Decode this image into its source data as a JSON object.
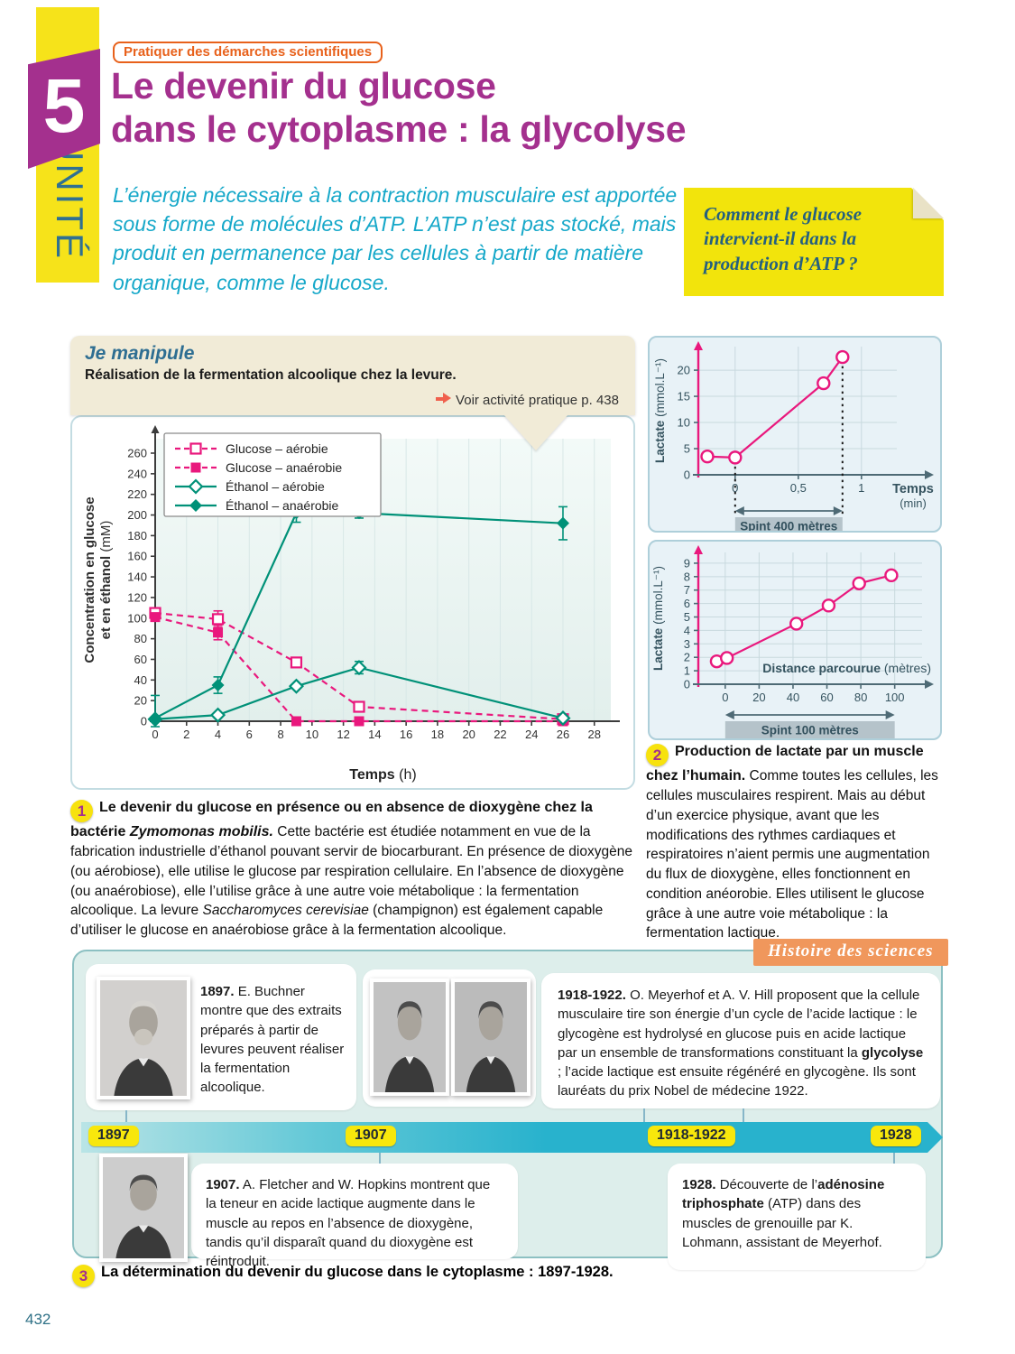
{
  "page_number": "432",
  "header": {
    "unit_word": "UNITÉ",
    "unit_number": "5",
    "skill_badge": "Pratiquer des démarches scientifiques",
    "title_line1": "Le devenir du glucose",
    "title_line2": "dans le cytoplasme : la glycolyse",
    "intro": "L’énergie nécessaire à la contraction musculaire est apportée sous forme de molécules d’ATP. L’ATP n’est pas stocké, mais produit en permanence par les cellules à partir de matière organique, comme le glucose.",
    "question_note": "Comment le glucose intervient-il dans la production d’ATP ?"
  },
  "je_manipule": {
    "title": "Je manipule",
    "subtitle": "Réalisation de la fermentation alcoolique chez la levure.",
    "link_text": "Voir activité pratique p. 438",
    "link_arrow_icon": "arrow-right-icon"
  },
  "figure1": {
    "number": "1",
    "bold_lead": "Le devenir du glucose en présence ou en absence de dioxygène chez la bactérie ",
    "bold_italic_species": "Zymomonas mobilis.",
    "body1": " Cette bactérie est étudiée notamment en vue de la fabrication industrielle d’éthanol pouvant servir de biocarburant. En présence de dioxygène (ou aérobiose), elle utilise le glucose par respiration cellulaire. En l’absence de dioxygène (ou anaérobiose), elle l’utilise grâce à une autre voie métabolique : la fermentation alcoolique. La levure ",
    "italic_species": "Saccharomyces cerevisiae",
    "body2": " (champignon) est également capable d’utiliser le glucose en anaérobiose grâce à la fermentation alcoolique."
  },
  "figure2": {
    "number": "2",
    "bold_lead": "Production de lactate par un muscle chez l’humain.",
    "body": " Comme toutes les cellules, les cellules musculaires respirent. Mais au début d’un exercice physique, avant que les modifications des rythmes cardiaques et respiratoires n’aient permis une augmentation du flux de dioxygène, elles fonctionnent en condition anéorobie. Elles utilisent le glucose grâce à une autre voie métabolique : la fermentation lactique."
  },
  "figure3": {
    "number": "3",
    "caption": "La détermination du devenir du glucose dans le cytoplasme : 1897-1928."
  },
  "history": {
    "badge": "Histoire des sciences",
    "years": [
      "1897",
      "1907",
      "1918-1922",
      "1928"
    ],
    "event_1897": {
      "year": "1897.",
      "text": " E. Buchner montre que des extraits préparés à partir de levures peuvent réaliser la fermentation alcoolique."
    },
    "event_1918": {
      "year": "1918-1922.",
      "text1": " O. Meyerhof et A. V. Hill proposent que la cellule musculaire tire son énergie d’un cycle de l’acide lactique : le glycogène est hydrolysé en glucose puis en acide lactique par un ensemble de transformations constituant la ",
      "bold": "glycolyse",
      "text2": " ; l’acide lactique est ensuite régénéré en glycogène. Ils sont lauréats du prix Nobel de médecine 1922."
    },
    "event_1907": {
      "year": "1907.",
      "text": " A. Fletcher and W. Hopkins montrent que la teneur en acide lactique augmente dans le muscle au repos en l’absence de dioxygène, tandis qu’il disparaît quand du dioxygène est réintroduit."
    },
    "event_1928": {
      "year": "1928.",
      "text1": " Découverte de l’",
      "bold": "adénosine triphosphate",
      "text2": " (ATP) dans des muscles de grenouille par K. Lohmann, assistant de Meyerhof."
    }
  },
  "chart_data": [
    {
      "id": "fermentation",
      "type": "line",
      "xlabel_bold": "Temps",
      "xlabel_unit": "(h)",
      "ylabel_line1": "Concentration en glucose",
      "ylabel_line2": "et en éthanol",
      "ylabel_unit": "(mM)",
      "xlim": [
        0,
        29.05
      ],
      "ylim": [
        0,
        274
      ],
      "xticks": [
        0,
        2,
        4,
        6,
        8,
        10,
        12,
        14,
        16,
        18,
        20,
        22,
        24,
        26,
        28
      ],
      "yticks": [
        0,
        20,
        40,
        60,
        80,
        100,
        120,
        140,
        160,
        180,
        200,
        220,
        240,
        260
      ],
      "grid": "vertical",
      "legend_position": "top-left",
      "series": [
        {
          "name": "Glucose – aérobie",
          "color": "#e9187d",
          "dashed": true,
          "marker": "square-open",
          "points": [
            [
              0,
              105
            ],
            [
              4,
              99,
              8
            ],
            [
              9,
              57
            ],
            [
              13,
              14
            ],
            [
              26,
              2
            ]
          ]
        },
        {
          "name": "Glucose – anaérobie",
          "color": "#e9187d",
          "dashed": true,
          "marker": "square-filled",
          "points": [
            [
              0,
              101
            ],
            [
              4,
              86,
              7
            ],
            [
              9,
              0
            ],
            [
              13,
              0
            ],
            [
              26,
              0
            ]
          ]
        },
        {
          "name": "Éthanol – aérobie",
          "color": "#009178",
          "dashed": false,
          "marker": "diamond-open",
          "points": [
            [
              0,
              2
            ],
            [
              4,
              6
            ],
            [
              9,
              34
            ],
            [
              13,
              52,
              6
            ],
            [
              26,
              3
            ]
          ]
        },
        {
          "name": "Éthanol – anaérobie",
          "color": "#009178",
          "dashed": false,
          "marker": "diamond-filled",
          "points": [
            [
              0,
              3,
              22
            ],
            [
              4,
              35,
              8
            ],
            [
              9,
              202,
              9
            ],
            [
              13,
              202,
              5
            ],
            [
              26,
              192,
              16
            ]
          ]
        }
      ]
    },
    {
      "id": "lactate_temps",
      "type": "line",
      "ylabel_bold": "Lactate",
      "ylabel_unit": "(mmol.L⁻¹)",
      "xlabel_bold": "Temps",
      "xlabel_unit": "(min)",
      "xlim": [
        -0.32,
        1.58
      ],
      "ylim": [
        0,
        24.5
      ],
      "xticks": [
        0,
        0.5,
        1
      ],
      "xtick_labels": [
        "0",
        "0,5",
        "1"
      ],
      "yticks": [
        0,
        5,
        10,
        15,
        20
      ],
      "grid": "both",
      "series": [
        {
          "name": "Lactate",
          "color": "#e9187d",
          "dashed": false,
          "marker": "circle-open",
          "points": [
            [
              -0.22,
              3.5
            ],
            [
              0,
              3.3
            ],
            [
              0.7,
              17.5
            ],
            [
              0.85,
              22.5
            ]
          ]
        }
      ],
      "dotted_x": [
        0,
        0.85
      ],
      "span": {
        "from": 0,
        "to": 0.85,
        "label": "Spint 400 mètres"
      }
    },
    {
      "id": "lactate_distance",
      "type": "line",
      "ylabel_bold": "Lactate",
      "ylabel_unit": "(mmol.L⁻¹)",
      "inner_label_bold": "Distance parcourue",
      "inner_label_unit": "(mètres)",
      "xlim": [
        -18,
        122
      ],
      "ylim": [
        0,
        9.8
      ],
      "xticks": [
        0,
        20,
        40,
        60,
        80,
        100
      ],
      "yticks": [
        0,
        1,
        2,
        3,
        4,
        5,
        6,
        7,
        8,
        9
      ],
      "grid": "both",
      "series": [
        {
          "name": "Lactate",
          "color": "#e9187d",
          "dashed": false,
          "marker": "circle-open",
          "points": [
            [
              -5,
              1.7
            ],
            [
              1,
              1.95
            ],
            [
              42,
              4.5
            ],
            [
              61,
              5.85
            ],
            [
              79,
              7.5
            ],
            [
              98,
              8.1
            ]
          ]
        }
      ],
      "span": {
        "from": 0,
        "to": 100,
        "label": "Spint 100 mètres"
      }
    }
  ],
  "colors": {
    "purple_accent": "#a4308e",
    "yellow_band": "#f6e31a",
    "teal_intro": "#16a8c9",
    "orange_badge": "#e8611b",
    "pink_series": "#e9187d",
    "teal_series": "#009178",
    "timeline_bar": "#28b2cd"
  }
}
